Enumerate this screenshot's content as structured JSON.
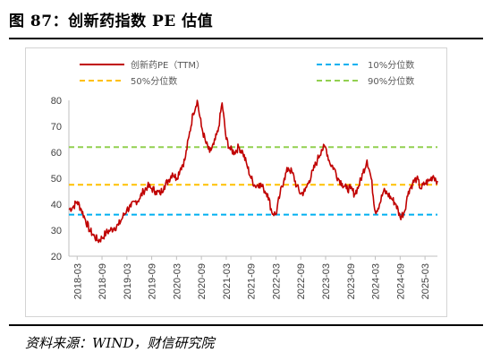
{
  "header": {
    "title": "图 87：创新药指数 PE 估值"
  },
  "footer": {
    "source": "资料来源：WIND，财信研究院"
  },
  "chart_data": {
    "type": "line",
    "xlabel": "",
    "ylabel": "",
    "ylim": [
      20,
      80
    ],
    "yticks": [
      20,
      30,
      40,
      50,
      60,
      70,
      80
    ],
    "xticks": [
      "2018-03",
      "2018-09",
      "2019-03",
      "2019-09",
      "2020-03",
      "2020-09",
      "2021-03",
      "2021-09",
      "2022-03",
      "2022-09",
      "2023-03",
      "2023-09",
      "2024-03",
      "2024-09",
      "2025-03"
    ],
    "x_start": "2018-01",
    "x_end": "2025-06",
    "grid": false,
    "legend": "top, 2 columns",
    "series": [
      {
        "name": "创新药PE（TTM）",
        "color": "#c00000",
        "x": [
          "2018-01",
          "2018-02",
          "2018-03",
          "2018-04",
          "2018-05",
          "2018-06",
          "2018-07",
          "2018-08",
          "2018-09",
          "2018-10",
          "2018-11",
          "2018-12",
          "2019-01",
          "2019-02",
          "2019-03",
          "2019-04",
          "2019-05",
          "2019-06",
          "2019-07",
          "2019-08",
          "2019-09",
          "2019-10",
          "2019-11",
          "2019-12",
          "2020-01",
          "2020-02",
          "2020-03",
          "2020-04",
          "2020-05",
          "2020-06",
          "2020-07",
          "2020-08",
          "2020-09",
          "2020-10",
          "2020-11",
          "2020-12",
          "2021-01",
          "2021-02",
          "2021-03",
          "2021-04",
          "2021-05",
          "2021-06",
          "2021-07",
          "2021-08",
          "2021-09",
          "2021-10",
          "2021-11",
          "2021-12",
          "2022-01",
          "2022-02",
          "2022-03",
          "2022-04",
          "2022-05",
          "2022-06",
          "2022-07",
          "2022-08",
          "2022-09",
          "2022-10",
          "2022-11",
          "2022-12",
          "2023-01",
          "2023-02",
          "2023-03",
          "2023-04",
          "2023-05",
          "2023-06",
          "2023-07",
          "2023-08",
          "2023-09",
          "2023-10",
          "2023-11",
          "2023-12",
          "2024-01",
          "2024-02",
          "2024-03",
          "2024-04",
          "2024-05",
          "2024-06",
          "2024-07",
          "2024-08",
          "2024-09",
          "2024-10",
          "2024-11",
          "2024-12",
          "2025-01",
          "2025-02",
          "2025-03",
          "2025-04",
          "2025-05",
          "2025-06"
        ],
        "values": [
          38,
          39,
          41,
          38,
          34,
          30,
          28,
          26,
          27,
          29,
          30,
          31,
          32,
          35,
          38,
          39,
          41,
          42,
          45,
          47,
          46,
          45,
          44,
          47,
          49,
          52,
          50,
          54,
          57,
          66,
          75,
          80,
          70,
          64,
          60,
          63,
          68,
          79,
          65,
          61,
          60,
          62,
          60,
          55,
          50,
          47,
          48,
          46,
          44,
          37,
          36,
          44,
          50,
          54,
          52,
          47,
          44,
          45,
          49,
          53,
          57,
          61,
          62,
          56,
          54,
          50,
          48,
          46,
          46,
          44,
          47,
          52,
          57,
          50,
          37,
          40,
          45,
          44,
          42,
          40,
          35,
          37,
          45,
          48,
          50,
          46,
          48,
          49,
          51,
          49
        ]
      },
      {
        "name": "10%分位数",
        "color": "#00b0f0",
        "constant": 36
      },
      {
        "name": "50%分位数",
        "color": "#ffc000",
        "constant": 47.5
      },
      {
        "name": "90%分位数",
        "color": "#92d050",
        "constant": 62
      }
    ]
  }
}
